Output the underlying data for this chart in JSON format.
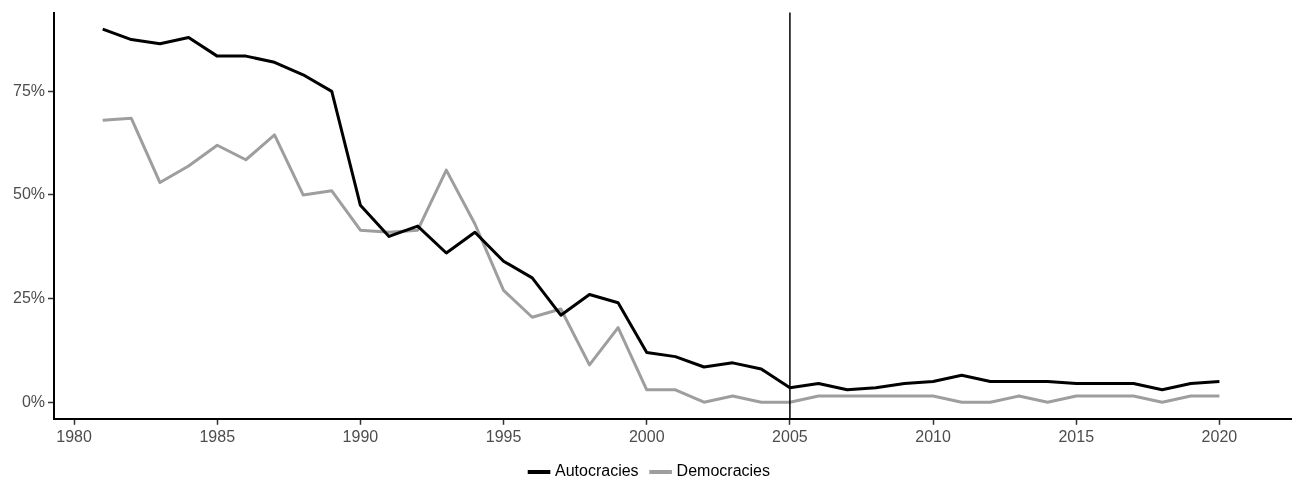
{
  "chart_data": {
    "type": "line",
    "x": [
      1981,
      1982,
      1983,
      1984,
      1985,
      1986,
      1987,
      1988,
      1989,
      1990,
      1991,
      1992,
      1993,
      1994,
      1995,
      1996,
      1997,
      1998,
      1999,
      2000,
      2001,
      2002,
      2003,
      2004,
      2005,
      2006,
      2007,
      2008,
      2009,
      2010,
      2011,
      2012,
      2013,
      2014,
      2015,
      2016,
      2017,
      2018,
      2019,
      2020
    ],
    "series": [
      {
        "name": "Autocracies",
        "color": "#000000",
        "values": [
          90,
          87.5,
          86.5,
          88,
          83.5,
          83.5,
          82,
          79,
          75,
          47.5,
          40,
          42.5,
          36,
          41,
          34,
          30,
          21,
          26,
          24,
          12,
          11,
          8.5,
          9.5,
          8,
          3.5,
          4.5,
          3,
          3.5,
          4.5,
          5,
          6.5,
          5,
          5,
          5,
          4.5,
          4.5,
          4.5,
          3,
          4.5,
          5
        ]
      },
      {
        "name": "Democracies",
        "color": "#9e9e9e",
        "values": [
          68,
          68.5,
          53,
          57,
          62,
          58.5,
          64.5,
          50,
          51,
          41.5,
          41,
          41.5,
          56,
          43,
          27,
          20.5,
          22.5,
          9,
          18,
          3,
          3,
          0,
          1.5,
          0,
          0,
          1.5,
          1.5,
          1.5,
          1.5,
          1.5,
          0,
          0,
          1.5,
          0,
          1.5,
          1.5,
          1.5,
          0,
          1.5,
          1.5
        ]
      }
    ],
    "xlim": [
      1979.3,
      2022.5
    ],
    "xticks": [
      1980,
      1985,
      1990,
      1995,
      2000,
      2005,
      2010,
      2015,
      2020
    ],
    "ylim": [
      -4,
      94
    ],
    "yticks": [
      {
        "value": 0,
        "label": "0%"
      },
      {
        "value": 25,
        "label": "25%"
      },
      {
        "value": 50,
        "label": "50%"
      },
      {
        "value": 75,
        "label": "75%"
      }
    ],
    "ref_lines": [
      {
        "axis": "x",
        "value": 2005,
        "color": "#000000"
      }
    ],
    "grid": false,
    "legend": "bottom",
    "marker": "none",
    "line_style": "solid"
  }
}
